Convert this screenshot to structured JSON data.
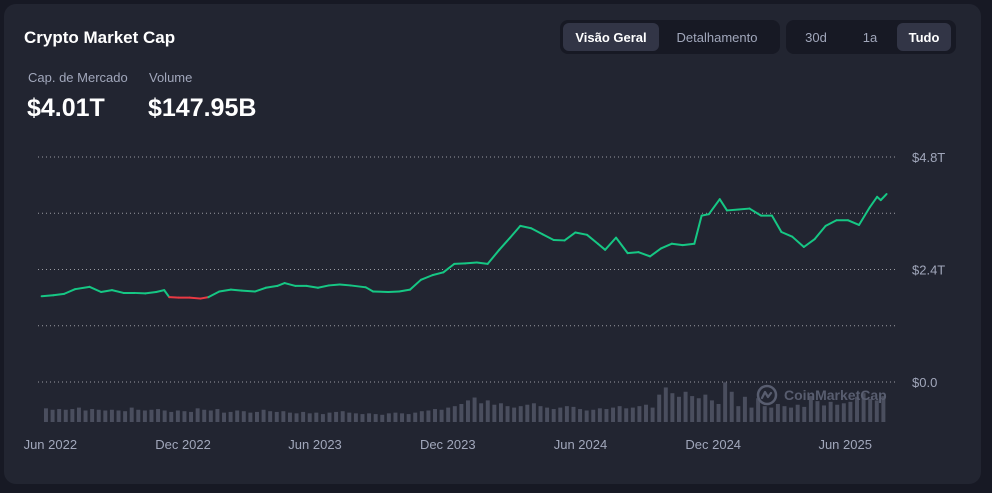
{
  "header": {
    "title": "Crypto Market Cap",
    "view_tabs": [
      {
        "label": "Visão Geral",
        "active": true
      },
      {
        "label": "Detalhamento",
        "active": false
      }
    ],
    "range_tabs": [
      {
        "label": "30d",
        "active": false
      },
      {
        "label": "1a",
        "active": false
      },
      {
        "label": "Tudo",
        "active": true
      }
    ]
  },
  "stats": {
    "market_cap_label": "Cap. de Mercado",
    "market_cap_value": "$4.01T",
    "volume_label": "Volume",
    "volume_value": "$147.95B"
  },
  "watermark": "CoinMarketCap",
  "colors": {
    "up_line": "#16c784",
    "down_line": "#ea3943",
    "volume_bar": "#4a4e5e",
    "grid": "#ffffff"
  },
  "chart_data": {
    "type": "line",
    "x_unit": "date",
    "y_unit": "USD trillions",
    "ylim": [
      0,
      4.8
    ],
    "y_ticks": [
      {
        "value": 4.8,
        "label": "$4.8T"
      },
      {
        "value": 2.4,
        "label": "$2.4T"
      },
      {
        "value": 0.0,
        "label": "$0.0"
      }
    ],
    "x_ticks": [
      {
        "date": "2022-06-01",
        "label": "Jun 2022"
      },
      {
        "date": "2022-12-01",
        "label": "Dec 2022"
      },
      {
        "date": "2023-06-01",
        "label": "Jun 2023"
      },
      {
        "date": "2023-12-01",
        "label": "Dec 2023"
      },
      {
        "date": "2024-06-01",
        "label": "Jun 2024"
      },
      {
        "date": "2024-12-01",
        "label": "Dec 2024"
      },
      {
        "date": "2025-06-01",
        "label": "Jun 2025"
      }
    ],
    "xlim": [
      "2022-05-15",
      "2025-07-30"
    ],
    "grid": "dotted horizontal",
    "series": [
      {
        "points": [
          [
            "2022-05-20",
            1.83
          ],
          [
            "2022-06-05",
            1.85
          ],
          [
            "2022-06-20",
            1.88
          ],
          [
            "2022-07-05",
            1.98
          ],
          [
            "2022-07-25",
            2.03
          ],
          [
            "2022-08-10",
            1.92
          ],
          [
            "2022-08-25",
            1.96
          ],
          [
            "2022-09-10",
            1.9
          ],
          [
            "2022-09-25",
            1.9
          ],
          [
            "2022-10-10",
            1.89
          ],
          [
            "2022-10-25",
            1.92
          ],
          [
            "2022-11-05",
            1.96
          ],
          [
            "2022-11-12",
            1.81
          ],
          [
            "2022-11-25",
            1.8
          ],
          [
            "2022-12-10",
            1.8
          ],
          [
            "2022-12-25",
            1.78
          ],
          [
            "2023-01-05",
            1.81
          ],
          [
            "2023-01-20",
            1.93
          ],
          [
            "2023-02-05",
            1.97
          ],
          [
            "2023-02-20",
            1.95
          ],
          [
            "2023-03-10",
            1.93
          ],
          [
            "2023-03-25",
            2.01
          ],
          [
            "2023-04-10",
            2.05
          ],
          [
            "2023-04-20",
            2.11
          ],
          [
            "2023-05-05",
            2.05
          ],
          [
            "2023-05-20",
            2.05
          ],
          [
            "2023-06-05",
            2.01
          ],
          [
            "2023-06-20",
            2.06
          ],
          [
            "2023-07-05",
            2.08
          ],
          [
            "2023-07-20",
            2.06
          ],
          [
            "2023-08-10",
            2.02
          ],
          [
            "2023-08-20",
            1.93
          ],
          [
            "2023-09-10",
            1.92
          ],
          [
            "2023-09-25",
            1.93
          ],
          [
            "2023-10-10",
            1.97
          ],
          [
            "2023-10-25",
            2.18
          ],
          [
            "2023-11-10",
            2.28
          ],
          [
            "2023-11-25",
            2.34
          ],
          [
            "2023-12-10",
            2.52
          ],
          [
            "2023-12-25",
            2.53
          ],
          [
            "2024-01-10",
            2.55
          ],
          [
            "2024-01-25",
            2.52
          ],
          [
            "2024-02-10",
            2.82
          ],
          [
            "2024-02-25",
            3.08
          ],
          [
            "2024-03-10",
            3.33
          ],
          [
            "2024-03-25",
            3.28
          ],
          [
            "2024-04-10",
            3.15
          ],
          [
            "2024-04-25",
            3.03
          ],
          [
            "2024-05-10",
            3.02
          ],
          [
            "2024-05-25",
            3.19
          ],
          [
            "2024-06-10",
            3.14
          ],
          [
            "2024-06-25",
            2.95
          ],
          [
            "2024-07-05",
            2.82
          ],
          [
            "2024-07-20",
            3.08
          ],
          [
            "2024-08-05",
            2.75
          ],
          [
            "2024-08-20",
            2.77
          ],
          [
            "2024-09-05",
            2.68
          ],
          [
            "2024-09-20",
            2.85
          ],
          [
            "2024-10-05",
            2.95
          ],
          [
            "2024-10-20",
            2.92
          ],
          [
            "2024-11-05",
            2.95
          ],
          [
            "2024-11-15",
            3.55
          ],
          [
            "2024-11-25",
            3.58
          ],
          [
            "2024-12-10",
            3.9
          ],
          [
            "2024-12-20",
            3.66
          ],
          [
            "2025-01-05",
            3.68
          ],
          [
            "2025-01-20",
            3.7
          ],
          [
            "2025-02-05",
            3.55
          ],
          [
            "2025-02-20",
            3.55
          ],
          [
            "2025-03-05",
            3.2
          ],
          [
            "2025-03-20",
            3.1
          ],
          [
            "2025-04-05",
            2.88
          ],
          [
            "2025-04-20",
            3.05
          ],
          [
            "2025-05-05",
            3.33
          ],
          [
            "2025-05-20",
            3.45
          ],
          [
            "2025-06-05",
            3.45
          ],
          [
            "2025-06-20",
            3.35
          ],
          [
            "2025-07-05",
            3.73
          ],
          [
            "2025-07-15",
            3.95
          ],
          [
            "2025-07-20",
            3.88
          ],
          [
            "2025-07-28",
            4.01
          ]
        ]
      }
    ],
    "volume": [
      0.19,
      0.17,
      0.18,
      0.17,
      0.18,
      0.2,
      0.16,
      0.18,
      0.17,
      0.16,
      0.17,
      0.16,
      0.15,
      0.2,
      0.17,
      0.16,
      0.17,
      0.18,
      0.16,
      0.14,
      0.16,
      0.15,
      0.14,
      0.19,
      0.17,
      0.16,
      0.18,
      0.13,
      0.14,
      0.16,
      0.15,
      0.13,
      0.14,
      0.17,
      0.15,
      0.14,
      0.15,
      0.13,
      0.12,
      0.14,
      0.12,
      0.13,
      0.11,
      0.13,
      0.14,
      0.15,
      0.13,
      0.12,
      0.11,
      0.12,
      0.11,
      0.1,
      0.12,
      0.13,
      0.12,
      0.11,
      0.13,
      0.15,
      0.16,
      0.18,
      0.17,
      0.2,
      0.22,
      0.25,
      0.3,
      0.34,
      0.26,
      0.3,
      0.24,
      0.26,
      0.22,
      0.2,
      0.22,
      0.24,
      0.26,
      0.22,
      0.2,
      0.18,
      0.2,
      0.22,
      0.21,
      0.18,
      0.16,
      0.17,
      0.19,
      0.18,
      0.2,
      0.22,
      0.19,
      0.2,
      0.22,
      0.24,
      0.2,
      0.38,
      0.48,
      0.4,
      0.35,
      0.42,
      0.36,
      0.33,
      0.38,
      0.3,
      0.25,
      0.55,
      0.42,
      0.22,
      0.35,
      0.2,
      0.33,
      0.22,
      0.2,
      0.25,
      0.22,
      0.2,
      0.24,
      0.21,
      0.36,
      0.29,
      0.23,
      0.28,
      0.24,
      0.26,
      0.28,
      0.35,
      0.4,
      0.32,
      0.3,
      0.36
    ]
  }
}
